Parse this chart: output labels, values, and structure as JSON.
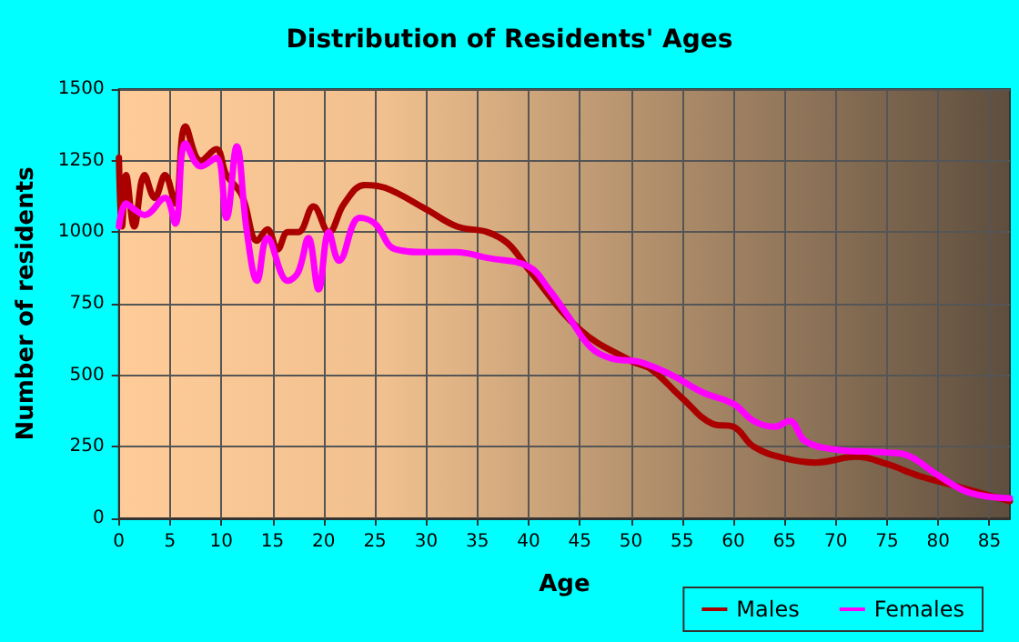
{
  "chart_data": {
    "type": "line",
    "title": "Distribution of Residents' Ages",
    "xlabel": "Age",
    "ylabel": "Number of residents",
    "xlim": [
      0,
      87
    ],
    "xticks": [
      0,
      5,
      10,
      15,
      20,
      25,
      30,
      35,
      40,
      45,
      50,
      55,
      60,
      65,
      70,
      75,
      80,
      85
    ],
    "ylim": [
      0,
      1500
    ],
    "yticks": [
      0,
      250,
      500,
      750,
      1000,
      1250,
      1500
    ],
    "grid": true,
    "legend": "bottom right",
    "marker": "none",
    "line_style": "solid",
    "series": [
      {
        "name": "Males",
        "color": "#aa0000",
        "x": [
          0,
          0.3,
          0.7,
          1.5,
          2.5,
          3.5,
          4.5,
          5.5,
          6.5,
          8,
          9.5,
          10.5,
          12,
          13.5,
          14.5,
          15.5,
          16.5,
          17.5,
          19,
          20.5,
          22,
          24,
          26,
          30,
          33,
          36,
          38,
          40,
          45,
          50,
          52,
          55,
          58,
          60,
          62,
          65,
          68,
          72,
          75,
          78,
          82,
          85,
          87
        ],
        "values": [
          1260,
          1020,
          1200,
          1020,
          1200,
          1120,
          1200,
          1100,
          1370,
          1250,
          1290,
          1200,
          1130,
          970,
          1010,
          940,
          1000,
          1000,
          1090,
          1000,
          1100,
          1165,
          1155,
          1080,
          1020,
          1000,
          960,
          870,
          660,
          550,
          520,
          420,
          330,
          320,
          250,
          210,
          195,
          215,
          190,
          150,
          110,
          80,
          60
        ]
      },
      {
        "name": "Females",
        "color": "#ff00ff",
        "x": [
          0,
          0.7,
          1.5,
          2.5,
          4.5,
          5.5,
          6.5,
          8,
          9.5,
          10.5,
          11.5,
          12.5,
          13.5,
          14.5,
          16.5,
          17.5,
          18.5,
          19.5,
          20.5,
          21.5,
          23.5,
          25,
          27,
          30,
          33,
          36,
          40,
          42,
          44,
          46,
          48,
          51,
          54,
          57,
          60,
          62,
          64,
          65.5,
          67,
          70,
          75,
          77,
          80,
          83,
          87
        ],
        "values": [
          1020,
          1100,
          1080,
          1060,
          1120,
          1030,
          1310,
          1230,
          1260,
          1050,
          1300,
          1000,
          830,
          980,
          830,
          860,
          980,
          800,
          1000,
          900,
          1050,
          1030,
          940,
          930,
          930,
          910,
          880,
          800,
          700,
          600,
          560,
          545,
          500,
          440,
          400,
          340,
          320,
          340,
          270,
          240,
          230,
          220,
          150,
          90,
          70
        ]
      }
    ]
  }
}
